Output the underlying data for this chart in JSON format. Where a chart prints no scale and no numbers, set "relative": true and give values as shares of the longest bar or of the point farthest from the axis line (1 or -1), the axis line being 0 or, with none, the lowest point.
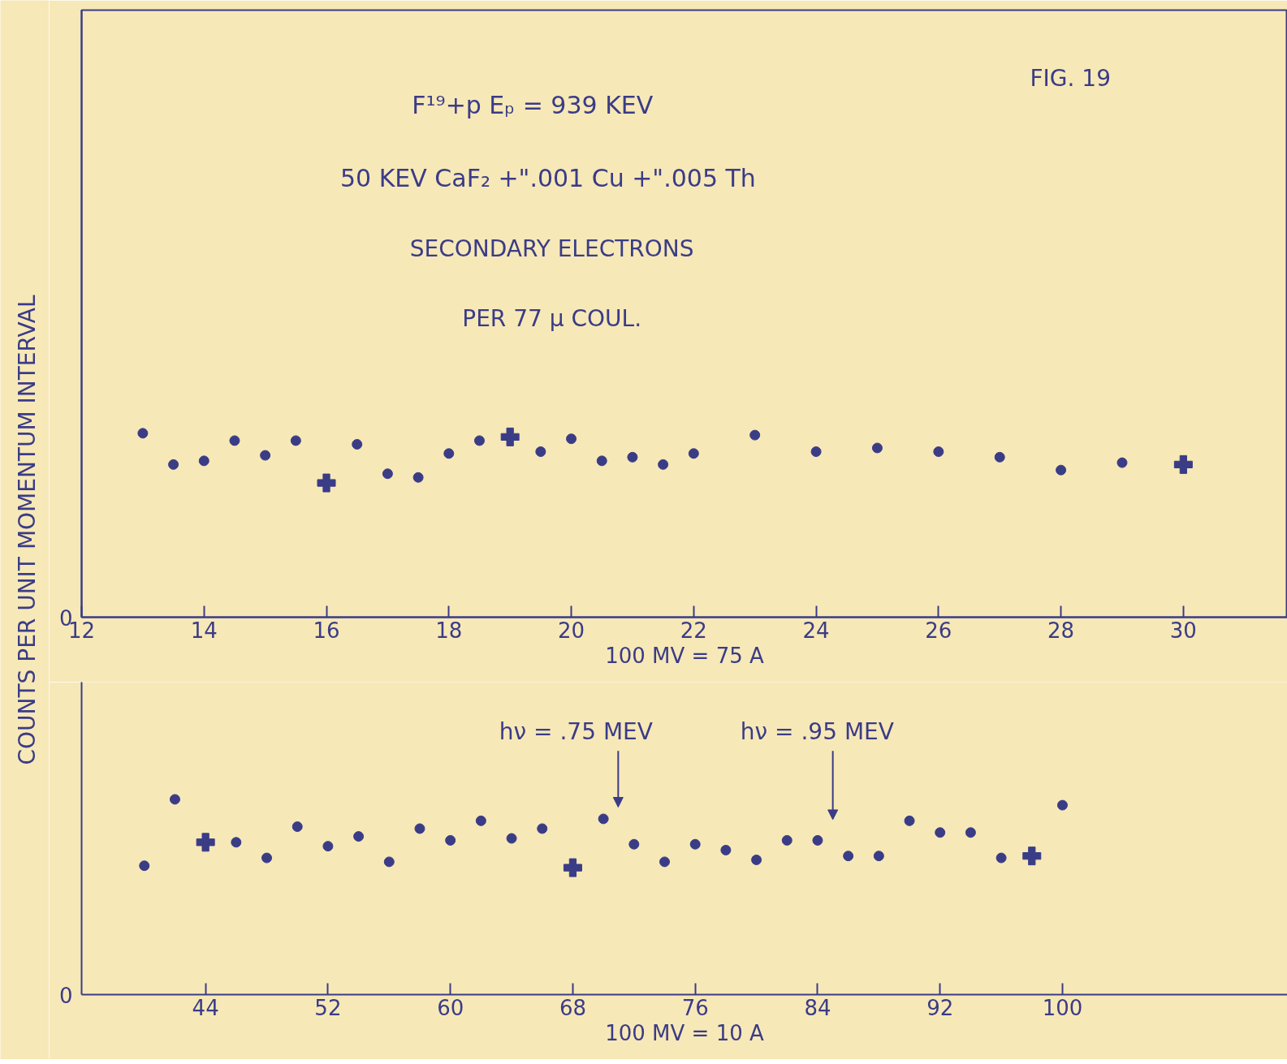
{
  "chart_data": [
    {
      "type": "scatter",
      "relative": true,
      "title": "F¹⁹+p      Eₚ = 939 KEV",
      "subtitle": "50 KEV  CaF₂ +\".001 Cu +\".005 Th",
      "xlabel": "100 MV = 75 A",
      "ylabel": "COUNTS PER UNIT MOMENTUM INTERVAL",
      "xlim": [
        12,
        31.7
      ],
      "xticks": [
        12,
        14,
        16,
        18,
        20,
        22,
        24,
        26,
        28,
        30
      ],
      "tick_labels": "x",
      "annotations": [
        "SECONDARY ELECTRONS",
        "PER 77 μ COUL.",
        "FIG. 19",
        "0"
      ],
      "series": [
        {
          "color": "#3a3c86",
          "marker": "circle",
          "x": [
            13,
            13.5,
            14,
            14.5,
            15,
            15.5,
            16.5,
            17,
            17.5,
            18,
            18.5,
            19.5,
            20,
            20.5,
            21,
            21.5,
            22,
            23,
            24,
            25,
            26,
            27,
            28,
            29
          ],
          "values": [
            1,
            0.83,
            0.85,
            0.96,
            0.88,
            0.96,
            0.94,
            0.78,
            0.76,
            0.89,
            0.96,
            0.9,
            0.97,
            0.85,
            0.87,
            0.83,
            0.89,
            0.99,
            0.9,
            0.92,
            0.9,
            0.87,
            0.8,
            0.84
          ]
        },
        {
          "color": "#3a3c86",
          "marker": "cross",
          "x": [
            16,
            19,
            30
          ],
          "values": [
            0.73,
            0.98,
            0.83
          ]
        }
      ]
    },
    {
      "type": "scatter",
      "relative": true,
      "xlabel": "100 MV = 10 A",
      "xlim": [
        35.9,
        114.7
      ],
      "xticks": [
        44,
        52,
        60,
        68,
        76,
        84,
        92,
        100
      ],
      "tick_labels": "x",
      "annotations": [
        "hν = .75 MEV",
        "hν = .95 MEV",
        "0"
      ],
      "series": [
        {
          "color": "#3a3c86",
          "marker": "circle",
          "x": [
            40,
            42,
            46,
            48,
            50,
            52,
            54,
            56,
            58,
            60,
            62,
            64,
            66,
            70,
            72,
            74,
            76,
            78,
            80,
            82,
            84,
            86,
            88,
            90,
            92,
            94,
            96,
            100
          ],
          "values": [
            0.66,
            1,
            0.78,
            0.7,
            0.86,
            0.76,
            0.81,
            0.68,
            0.85,
            0.79,
            0.89,
            0.8,
            0.85,
            0.9,
            0.77,
            0.68,
            0.77,
            0.74,
            0.69,
            0.79,
            0.79,
            0.71,
            0.71,
            0.89,
            0.83,
            0.83,
            0.7,
            0.97
          ]
        },
        {
          "color": "#3a3c86",
          "marker": "cross",
          "x": [
            44,
            68,
            98
          ],
          "values": [
            0.78,
            0.65,
            0.71
          ]
        }
      ]
    }
  ]
}
